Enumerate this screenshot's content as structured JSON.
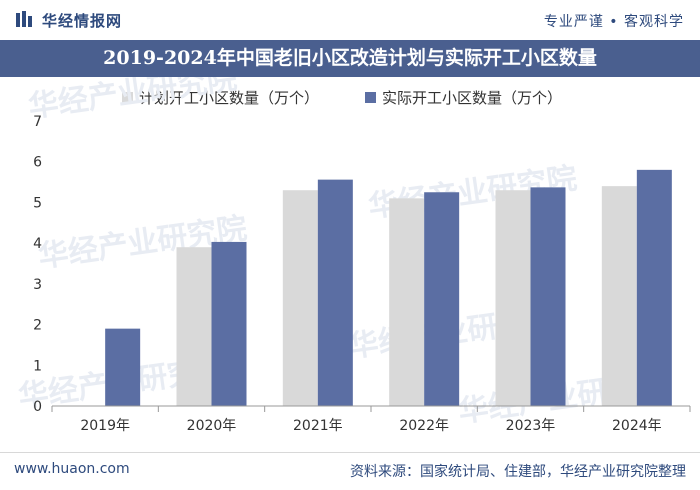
{
  "header": {
    "brand_name": "华经情报网",
    "slogan": "专业严谨 • 客观科学",
    "title": "2019-2024年中国老旧小区改造计划与实际开工小区数量"
  },
  "colors": {
    "planned": "#d9d9d9",
    "actual": "#5b6ea3",
    "title_bg": "#4a5f8f",
    "brand": "#2e4a7d"
  },
  "watermarks": [
    "华经产业研究院"
  ],
  "chart_data": {
    "type": "bar",
    "title": "2019-2024年中国老旧小区改造计划与实际开工小区数量",
    "categories": [
      "2019年",
      "2020年",
      "2021年",
      "2022年",
      "2023年",
      "2024年"
    ],
    "series": [
      {
        "name": "计划开工小区数量（万个）",
        "values": [
          null,
          3.9,
          5.3,
          5.1,
          5.3,
          5.4
        ]
      },
      {
        "name": "实际开工小区数量（万个）",
        "values": [
          1.9,
          4.03,
          5.56,
          5.25,
          5.37,
          5.8
        ]
      }
    ],
    "yticks": [
      "0",
      "1",
      "2",
      "3",
      "4",
      "5",
      "6",
      "7"
    ],
    "ylim": [
      0,
      7
    ],
    "xlabel": "",
    "ylabel": "",
    "legend_position": "top-center"
  },
  "footer": {
    "url": "www.huaon.com",
    "source": "资料来源：国家统计局、住建部，华经产业研究院整理"
  }
}
